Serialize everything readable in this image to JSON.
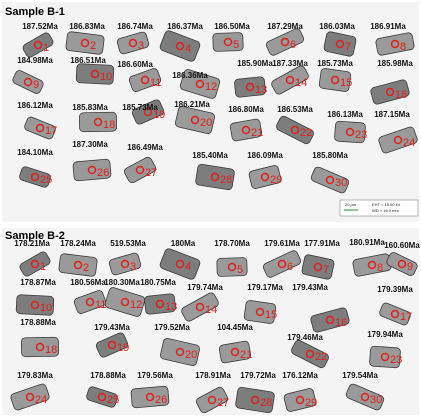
{
  "panels": [
    {
      "title": "Sample B-1",
      "grains": [
        {
          "spot": 1,
          "age": "187.52Ma"
        },
        {
          "spot": 2,
          "age": "186.83Ma"
        },
        {
          "spot": 3,
          "age": "186.74Ma"
        },
        {
          "spot": 4,
          "age": "186.37Ma"
        },
        {
          "spot": 5,
          "age": "186.50Ma"
        },
        {
          "spot": 6,
          "age": "187.29Ma"
        },
        {
          "spot": 7,
          "age": "186.03Ma"
        },
        {
          "spot": 8,
          "age": "186.91Ma"
        },
        {
          "spot": 9,
          "age": "184.98Ma"
        },
        {
          "spot": 10,
          "age": "186.51Ma"
        },
        {
          "spot": 11,
          "age": "186.60Ma"
        },
        {
          "spot": 12,
          "age": "186.36Ma"
        },
        {
          "spot": 13,
          "age": "185.90Ma"
        },
        {
          "spot": 14,
          "age": "187.33Ma"
        },
        {
          "spot": 15,
          "age": "185.73Ma"
        },
        {
          "spot": 16,
          "age": "185.98Ma"
        },
        {
          "spot": 17,
          "age": "186.12Ma"
        },
        {
          "spot": 18,
          "age": "185.83Ma"
        },
        {
          "spot": 19,
          "age": "185.73Ma"
        },
        {
          "spot": 20,
          "age": "186.21Ma"
        },
        {
          "spot": 21,
          "age": "186.80Ma"
        },
        {
          "spot": 22,
          "age": "186.53Ma"
        },
        {
          "spot": 23,
          "age": "186.13Ma"
        },
        {
          "spot": 24,
          "age": "187.15Ma"
        },
        {
          "spot": 25,
          "age": "184.10Ma"
        },
        {
          "spot": 26,
          "age": "187.30Ma"
        },
        {
          "spot": 27,
          "age": "186.49Ma"
        },
        {
          "spot": 28,
          "age": "185.40Ma"
        },
        {
          "spot": 29,
          "age": "186.09Ma"
        },
        {
          "spot": 30,
          "age": "185.80Ma"
        }
      ]
    },
    {
      "title": "Sample B-2",
      "grains": [
        {
          "spot": 1,
          "age": "178.21Ma"
        },
        {
          "spot": 2,
          "age": "178.24Ma"
        },
        {
          "spot": 3,
          "age": "519.53Ma"
        },
        {
          "spot": 4,
          "age": "180Ma"
        },
        {
          "spot": 5,
          "age": "178.70Ma"
        },
        {
          "spot": 6,
          "age": "179.61Ma"
        },
        {
          "spot": 7,
          "age": "177.91Ma"
        },
        {
          "spot": 8,
          "age": "180.91Ma"
        },
        {
          "spot": 9,
          "age": "160.60Ma"
        },
        {
          "spot": 10,
          "age": "178.87Ma"
        },
        {
          "spot": 11,
          "age": "180.56Ma"
        },
        {
          "spot": 12,
          "age": "180.30Ma"
        },
        {
          "spot": 13,
          "age": "180.75Ma"
        },
        {
          "spot": 14,
          "age": "179.74Ma"
        },
        {
          "spot": 15,
          "age": "179.17Ma"
        },
        {
          "spot": 16,
          "age": "179.43Ma"
        },
        {
          "spot": 17,
          "age": "179.39Ma"
        },
        {
          "spot": 18,
          "age": "178.88Ma"
        },
        {
          "spot": 19,
          "age": "179.43Ma"
        },
        {
          "spot": 20,
          "age": "179.52Ma"
        },
        {
          "spot": 21,
          "age": "104.45Ma"
        },
        {
          "spot": 22,
          "age": "179.46Ma"
        },
        {
          "spot": 23,
          "age": "179.94Ma"
        },
        {
          "spot": 24,
          "age": "179.83Ma"
        },
        {
          "spot": 25,
          "age": "178.88Ma"
        },
        {
          "spot": 26,
          "age": "179.56Ma"
        },
        {
          "spot": 27,
          "age": "178.91Ma"
        },
        {
          "spot": 28,
          "age": "179.72Ma"
        },
        {
          "spot": 29,
          "age": "176.12Ma"
        },
        {
          "spot": 30,
          "age": "179.54Ma"
        }
      ]
    }
  ],
  "scale_bar": {
    "label": "20 μm",
    "lines": [
      "EHT = 15.00 kV",
      "WD = 16.0 mm"
    ]
  }
}
